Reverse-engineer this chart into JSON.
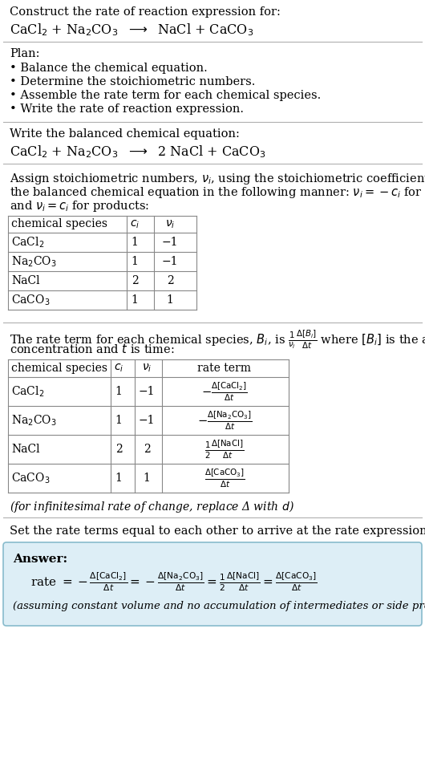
{
  "bg_color": "#ffffff",
  "text_color": "#000000",
  "answer_bg": "#ddeef6",
  "answer_border": "#88bbcc",
  "title": "Construct the rate of reaction expression for:",
  "reaction_unbalanced": "CaCl$_2$ + Na$_2$CO$_3$  $\\longrightarrow$  NaCl + CaCO$_3$",
  "plan_header": "Plan:",
  "plan_items": [
    "• Balance the chemical equation.",
    "• Determine the stoichiometric numbers.",
    "• Assemble the rate term for each chemical species.",
    "• Write the rate of reaction expression."
  ],
  "balanced_header": "Write the balanced chemical equation:",
  "reaction_balanced": "CaCl$_2$ + Na$_2$CO$_3$  $\\longrightarrow$  2 NaCl + CaCO$_3$",
  "stoich_intro_1": "Assign stoichiometric numbers, $\\nu_i$, using the stoichiometric coefficients, $c_i$, from",
  "stoich_intro_2": "the balanced chemical equation in the following manner: $\\nu_i = -c_i$ for reactants",
  "stoich_intro_3": "and $\\nu_i = c_i$ for products:",
  "table1_headers": [
    "chemical species",
    "$c_i$",
    "$\\nu_i$"
  ],
  "table1_data": [
    [
      "CaCl$_2$",
      "1",
      "−1"
    ],
    [
      "Na$_2$CO$_3$",
      "1",
      "−1"
    ],
    [
      "NaCl",
      "2",
      "2"
    ],
    [
      "CaCO$_3$",
      "1",
      "1"
    ]
  ],
  "rate_intro_1": "The rate term for each chemical species, $B_i$, is $\\frac{1}{\\nu_i}\\frac{\\Delta[B_i]}{\\Delta t}$ where $[B_i]$ is the amount",
  "rate_intro_2": "concentration and $t$ is time:",
  "table2_headers": [
    "chemical species",
    "$c_i$",
    "$\\nu_i$",
    "rate term"
  ],
  "table2_data": [
    [
      "CaCl$_2$",
      "1",
      "−1",
      "$-\\frac{\\Delta[\\mathrm{CaCl_2}]}{\\Delta t}$"
    ],
    [
      "Na$_2$CO$_3$",
      "1",
      "−1",
      "$-\\frac{\\Delta[\\mathrm{Na_2CO_3}]}{\\Delta t}$"
    ],
    [
      "NaCl",
      "2",
      "2",
      "$\\frac{1}{2}\\frac{\\Delta[\\mathrm{NaCl}]}{\\Delta t}$"
    ],
    [
      "CaCO$_3$",
      "1",
      "1",
      "$\\frac{\\Delta[\\mathrm{CaCO_3}]}{\\Delta t}$"
    ]
  ],
  "infin_note": "(for infinitesimal rate of change, replace Δ with $d$)",
  "set_equal_text": "Set the rate terms equal to each other to arrive at the rate expression:",
  "answer_label": "Answer:",
  "rate_expr_1": "rate $= -\\frac{\\Delta[\\mathrm{CaCl_2}]}{\\Delta t} = -\\frac{\\Delta[\\mathrm{Na_2CO_3}]}{\\Delta t} = \\frac{1}{2}\\frac{\\Delta[\\mathrm{NaCl}]}{\\Delta t} = \\frac{\\Delta[\\mathrm{CaCO_3}]}{\\Delta t}$",
  "assumption_note": "(assuming constant volume and no accumulation of intermediates or side products)"
}
